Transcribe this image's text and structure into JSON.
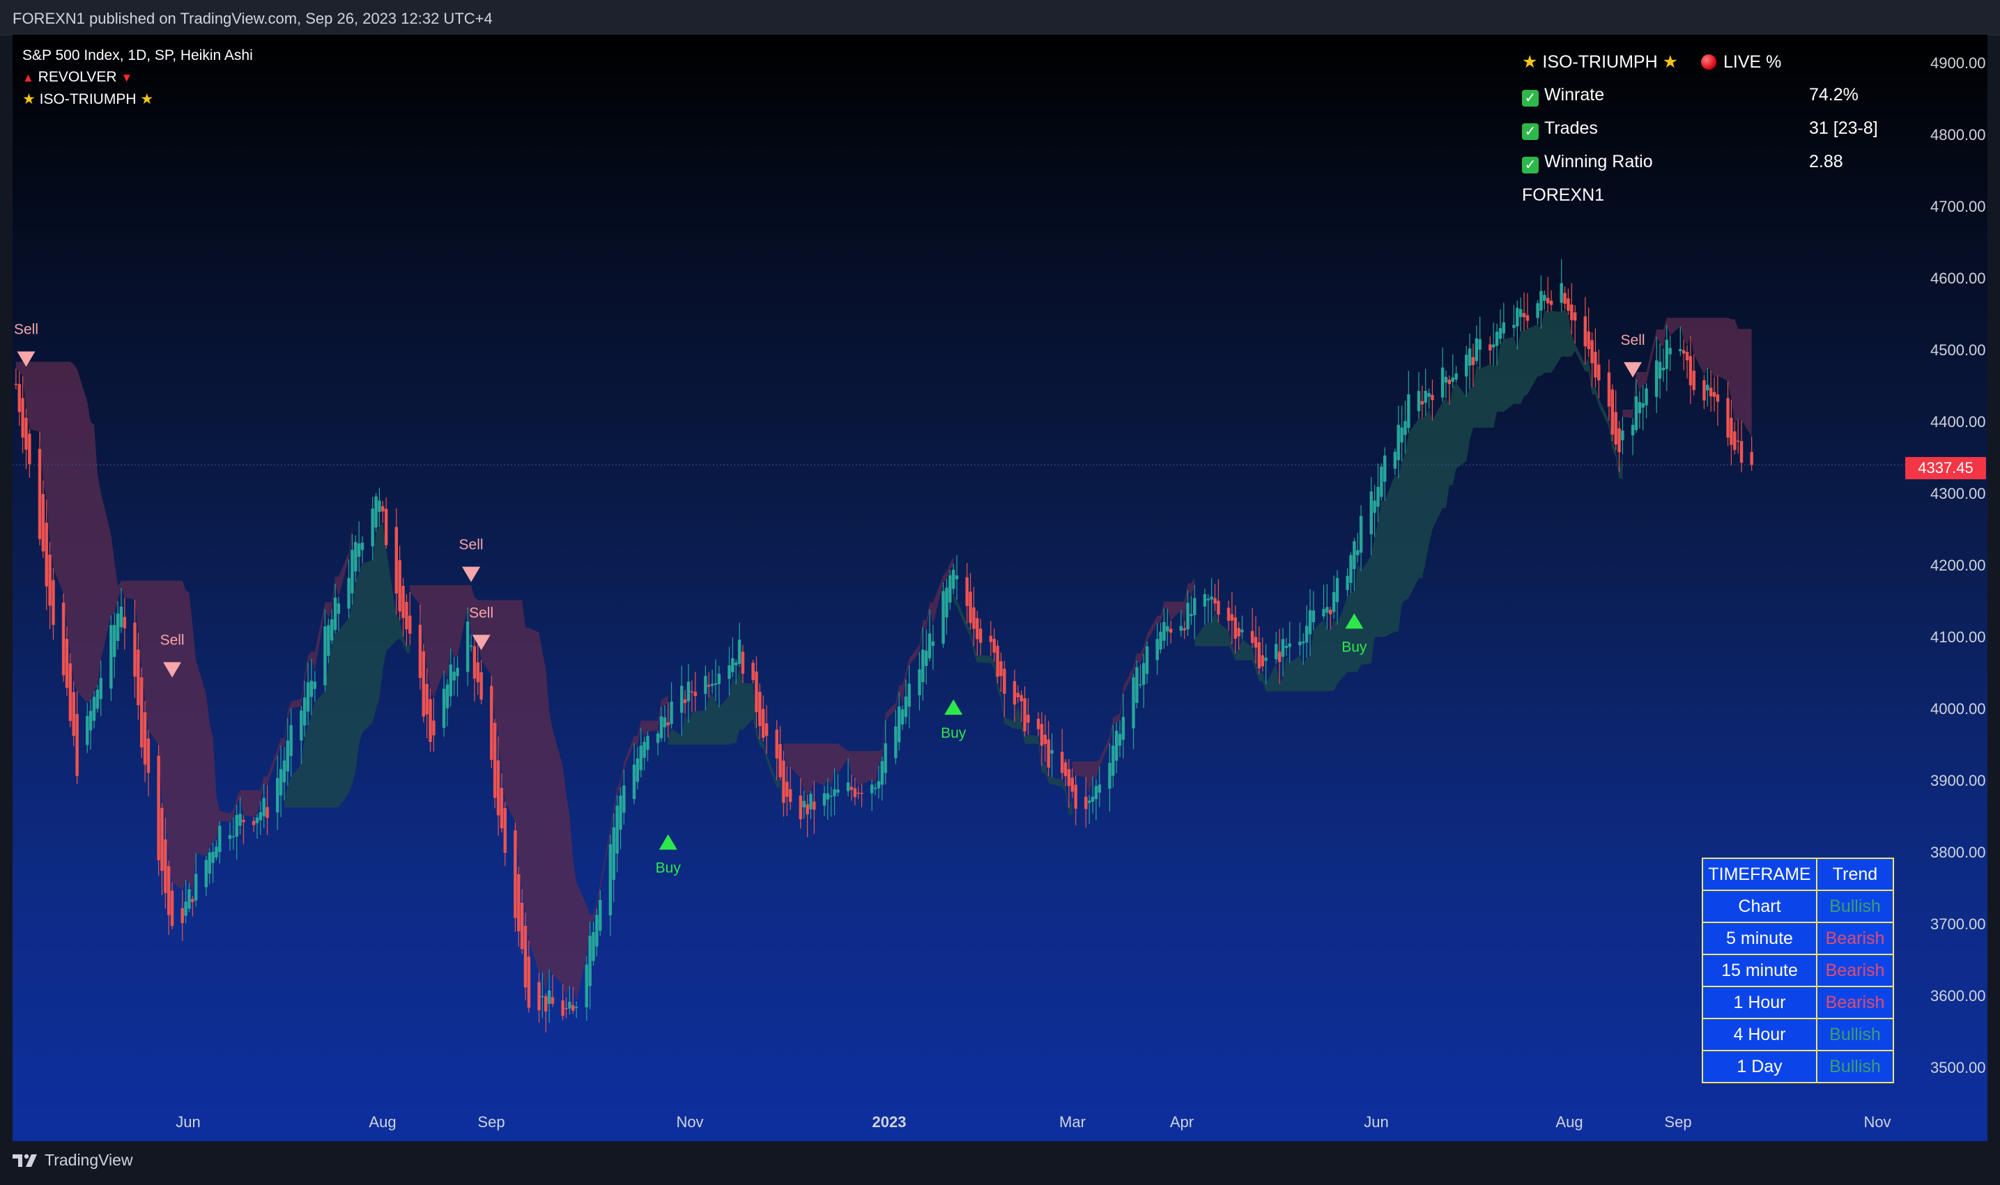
{
  "header": {
    "published": "FOREXN1 published on TradingView.com, Sep 26, 2023 12:32 UTC+4"
  },
  "legend": {
    "symbol": "S&P 500 Index, 1D, SP, Heikin Ashi",
    "indicator1": "REVOLVER",
    "indicator2": "ISO-TRIUMPH"
  },
  "stats": {
    "title": "ISO-TRIUMPH",
    "live": "LIVE %",
    "rows": [
      {
        "label": "Winrate",
        "value": "74.2%"
      },
      {
        "label": "Trades",
        "value": "31 [23-8]"
      },
      {
        "label": "Winning Ratio",
        "value": "2.88"
      }
    ],
    "author": "FOREXN1"
  },
  "trend_table": {
    "header": [
      "TIMEFRAME",
      "Trend"
    ],
    "rows": [
      {
        "tf": "Chart",
        "trend": "Bullish"
      },
      {
        "tf": "5 minute",
        "trend": "Bearish"
      },
      {
        "tf": "15 minute",
        "trend": "Bearish"
      },
      {
        "tf": "1 Hour",
        "trend": "Bearish"
      },
      {
        "tf": "4 Hour",
        "trend": "Bullish"
      },
      {
        "tf": "1 Day",
        "trend": "Bullish"
      }
    ]
  },
  "price_axis": [
    "4900.00",
    "4800.00",
    "4700.00",
    "4600.00",
    "4500.00",
    "4400.00",
    "4300.00",
    "4200.00",
    "4100.00",
    "4000.00",
    "3900.00",
    "3800.00",
    "3700.00",
    "3600.00",
    "3500.00"
  ],
  "time_axis": [
    "Jun",
    "Aug",
    "Sep",
    "Nov",
    "2023",
    "Mar",
    "Apr",
    "Jun",
    "Aug",
    "Sep",
    "Nov"
  ],
  "last_price": "4337.45",
  "signals": {
    "sell": "Sell",
    "buy": "Buy"
  },
  "footer": {
    "brand": "TradingView"
  },
  "colors": {
    "bull": "#26a69a",
    "bear": "#ef5350",
    "cloud_bear": "#5a2b4f",
    "cloud_bull": "#1b4a4a",
    "sell_marker": "#f7a6a9",
    "buy_marker": "#2ee84b",
    "table_bg": "#0b45ea",
    "table_border": "#f2e66a"
  },
  "chart_data": {
    "type": "candlestick",
    "ylim": [
      3450,
      4950
    ],
    "path": [
      [
        "2022-05-01",
        4480
      ],
      [
        "2022-05-20",
        3920
      ],
      [
        "2022-06-02",
        4150
      ],
      [
        "2022-06-17",
        3680
      ],
      [
        "2022-07-01",
        3830
      ],
      [
        "2022-07-15",
        3860
      ],
      [
        "2022-08-16",
        4300
      ],
      [
        "2022-09-01",
        3960
      ],
      [
        "2022-09-12",
        4110
      ],
      [
        "2022-09-30",
        3600
      ],
      [
        "2022-10-13",
        3570
      ],
      [
        "2022-10-28",
        3900
      ],
      [
        "2022-11-11",
        4000
      ],
      [
        "2022-12-01",
        4080
      ],
      [
        "2022-12-16",
        3850
      ],
      [
        "2023-01-10",
        3900
      ],
      [
        "2023-02-02",
        4180
      ],
      [
        "2023-02-22",
        3990
      ],
      [
        "2023-03-13",
        3850
      ],
      [
        "2023-04-02",
        4100
      ],
      [
        "2023-04-20",
        4150
      ],
      [
        "2023-05-05",
        4060
      ],
      [
        "2023-05-25",
        4150
      ],
      [
        "2023-06-16",
        4420
      ],
      [
        "2023-07-31",
        4590
      ],
      [
        "2023-08-17",
        4370
      ],
      [
        "2023-09-01",
        4510
      ],
      [
        "2023-09-25",
        4337
      ]
    ],
    "signals": [
      {
        "type": "Sell",
        "date": "2022-05-05",
        "price": 4485
      },
      {
        "type": "Sell",
        "date": "2022-06-17",
        "price": 4052
      },
      {
        "type": "Sell",
        "date": "2022-09-13",
        "price": 4185
      },
      {
        "type": "Sell",
        "date": "2022-09-16",
        "price": 4090
      },
      {
        "type": "Buy",
        "date": "2022-11-10",
        "price": 3812
      },
      {
        "type": "Buy",
        "date": "2023-02-02",
        "price": 4000
      },
      {
        "type": "Buy",
        "date": "2023-05-31",
        "price": 4120
      },
      {
        "type": "Sell",
        "date": "2023-08-21",
        "price": 4470
      }
    ],
    "last_close": 4337.45
  }
}
